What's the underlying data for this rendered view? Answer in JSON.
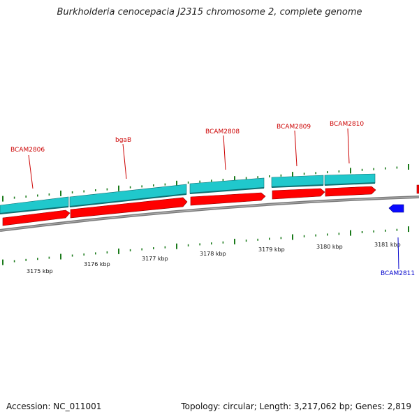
{
  "title": "Burkholderia cenocepacia J2315 chromosome 2, complete genome",
  "footer": {
    "accession": "Accession: NC_011001",
    "summary": "Topology: circular; Length: 3,217,062 bp; Genes: 2,819"
  },
  "colors": {
    "cds_forward": "#ff0000",
    "gene_forward": "#20c8cc",
    "cds_reverse": "#0a0aff",
    "tick": "#1a7a1a",
    "backbone": "#808080",
    "label_forward": "#cc0000",
    "label_reverse": "#0000cc"
  },
  "gene_labels": [
    {
      "text": "BCAM2806",
      "strand": "forward"
    },
    {
      "text": "bgaB",
      "strand": "forward"
    },
    {
      "text": "BCAM2808",
      "strand": "forward"
    },
    {
      "text": "BCAM2809",
      "strand": "forward"
    },
    {
      "text": "BCAM2810",
      "strand": "forward"
    },
    {
      "text": "BCAM2811",
      "strand": "reverse"
    }
  ],
  "scale_labels": [
    "3175 kbp",
    "3176 kbp",
    "3177 kbp",
    "3178 kbp",
    "3179 kbp",
    "3180 kbp",
    "3181 kbp"
  ]
}
